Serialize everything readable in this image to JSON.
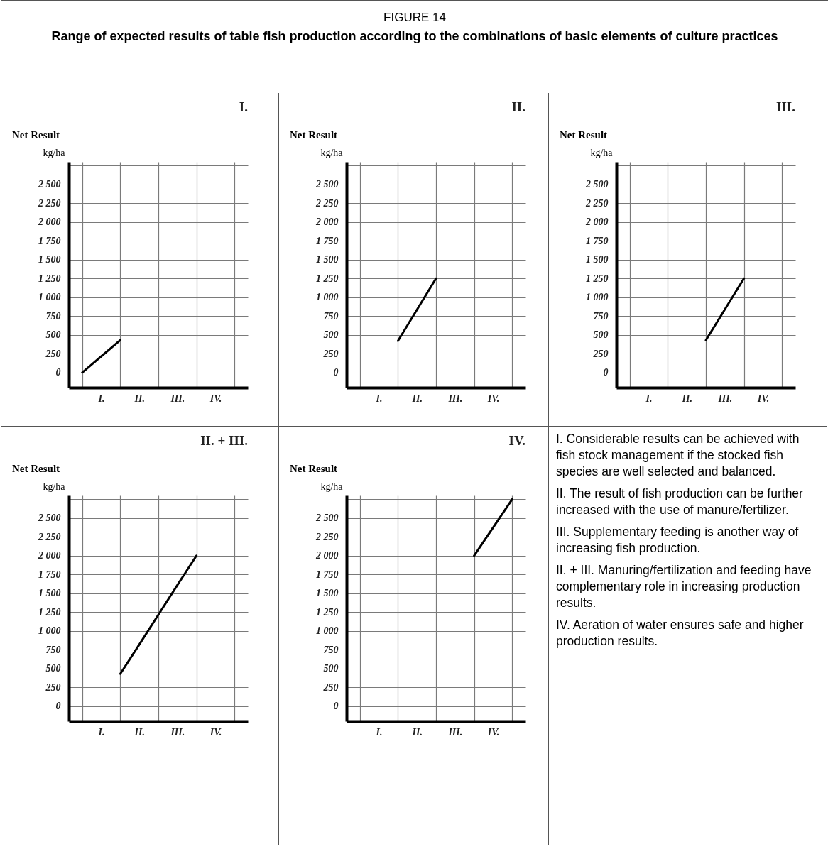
{
  "chart_data": [
    {
      "type": "other",
      "title": "FIGURE 14",
      "subtitle": "Range of expected results of table fish production according to the combinations of basic elements of culture practices"
    },
    {
      "type": "line",
      "title": "I.",
      "subtitle": "Net Result",
      "ylabel": "kg/ha",
      "grid": true,
      "ylim": [
        -200,
        2800
      ],
      "categories": [
        null,
        "I.",
        null,
        "II.",
        null,
        "III.",
        null,
        "IV.",
        null
      ],
      "yticks": [
        0,
        250,
        500,
        750,
        {
          "value": 1000,
          "label": "1 000"
        },
        {
          "value": 1250,
          "label": "1 250"
        },
        {
          "value": 1500,
          "label": "1 500"
        },
        {
          "value": 1750,
          "label": "1 750"
        },
        {
          "value": 2000,
          "label": "2 000"
        },
        {
          "value": 2250,
          "label": "2 250"
        },
        {
          "value": 2500,
          "label": "2 500"
        },
        {
          "value": 2750,
          "label": null
        }
      ],
      "series": [
        {
          "color": "#000000",
          "values": [
            0,
            215,
            430,
            null,
            null,
            null,
            null,
            null,
            null
          ]
        }
      ]
    },
    {
      "type": "line",
      "title": "II.",
      "subtitle": "Net Result",
      "ylabel": "kg/ha",
      "grid": true,
      "ylim": [
        -200,
        2800
      ],
      "categories": [
        null,
        "I.",
        null,
        "II.",
        null,
        "III.",
        null,
        "IV.",
        null
      ],
      "yticks": [
        0,
        250,
        500,
        750,
        {
          "value": 1000,
          "label": "1 000"
        },
        {
          "value": 1250,
          "label": "1 250"
        },
        {
          "value": 1500,
          "label": "1 500"
        },
        {
          "value": 1750,
          "label": "1 750"
        },
        {
          "value": 2000,
          "label": "2 000"
        },
        {
          "value": 2250,
          "label": "2 250"
        },
        {
          "value": 2500,
          "label": "2 500"
        },
        {
          "value": 2750,
          "label": null
        }
      ],
      "series": [
        {
          "color": "#000000",
          "values": [
            null,
            null,
            420,
            835,
            1250,
            null,
            null,
            null,
            null
          ]
        }
      ]
    },
    {
      "type": "line",
      "title": "III.",
      "subtitle": "Net Result",
      "ylabel": "kg/ha",
      "grid": true,
      "ylim": [
        -200,
        2800
      ],
      "categories": [
        null,
        "I.",
        null,
        "II.",
        null,
        "III.",
        null,
        "IV.",
        null
      ],
      "yticks": [
        0,
        250,
        500,
        750,
        {
          "value": 1000,
          "label": "1 000"
        },
        {
          "value": 1250,
          "label": "1 250"
        },
        {
          "value": 1500,
          "label": "1 500"
        },
        {
          "value": 1750,
          "label": "1 750"
        },
        {
          "value": 2000,
          "label": "2 000"
        },
        {
          "value": 2250,
          "label": "2 250"
        },
        {
          "value": 2500,
          "label": "2 500"
        },
        {
          "value": 2750,
          "label": null
        }
      ],
      "series": [
        {
          "color": "#000000",
          "values": [
            null,
            null,
            null,
            null,
            430,
            840,
            1250,
            null,
            null
          ]
        }
      ]
    },
    {
      "type": "line",
      "title": "II. + III.",
      "subtitle": "Net Result",
      "ylabel": "kg/ha",
      "grid": true,
      "ylim": [
        -200,
        2800
      ],
      "categories": [
        null,
        "I.",
        null,
        "II.",
        null,
        "III.",
        null,
        "IV.",
        null
      ],
      "yticks": [
        0,
        250,
        500,
        750,
        {
          "value": 1000,
          "label": "1 000"
        },
        {
          "value": 1250,
          "label": "1 250"
        },
        {
          "value": 1500,
          "label": "1 500"
        },
        {
          "value": 1750,
          "label": "1 750"
        },
        {
          "value": 2000,
          "label": "2 000"
        },
        {
          "value": 2250,
          "label": "2 250"
        },
        {
          "value": 2500,
          "label": "2 500"
        },
        {
          "value": 2750,
          "label": null
        }
      ],
      "series": [
        {
          "color": "#000000",
          "values": [
            null,
            null,
            430,
            820,
            1215,
            1610,
            2000,
            null,
            null
          ]
        }
      ]
    },
    {
      "type": "line",
      "title": "IV.",
      "subtitle": "Net Result",
      "ylabel": "kg/ha",
      "grid": true,
      "ylim": [
        -200,
        2800
      ],
      "categories": [
        null,
        "I.",
        null,
        "II.",
        null,
        "III.",
        null,
        "IV.",
        null
      ],
      "yticks": [
        0,
        250,
        500,
        750,
        {
          "value": 1000,
          "label": "1 000"
        },
        {
          "value": 1250,
          "label": "1 250"
        },
        {
          "value": 1500,
          "label": "1 500"
        },
        {
          "value": 1750,
          "label": "1 750"
        },
        {
          "value": 2000,
          "label": "2 000"
        },
        {
          "value": 2250,
          "label": "2 250"
        },
        {
          "value": 2500,
          "label": "2 500"
        },
        {
          "value": 2750,
          "label": null
        }
      ],
      "series": [
        {
          "color": "#000000",
          "values": [
            null,
            null,
            null,
            null,
            null,
            null,
            2000,
            2375,
            2750
          ]
        }
      ]
    },
    {
      "type": "other",
      "annotations": [
        "I. Considerable results can be achieved with fish stock management if the stocked fish species are well selected and balanced.",
        "II. The result of fish production can be further increased with the use of manure/fertilizer.",
        "III. Supplementary feeding is another way of increasing fish production.",
        "II. + III. Manuring/fertilization and feeding have complementary role in increasing production results.",
        "IV. Aeration of water ensures safe and higher production results."
      ]
    }
  ]
}
